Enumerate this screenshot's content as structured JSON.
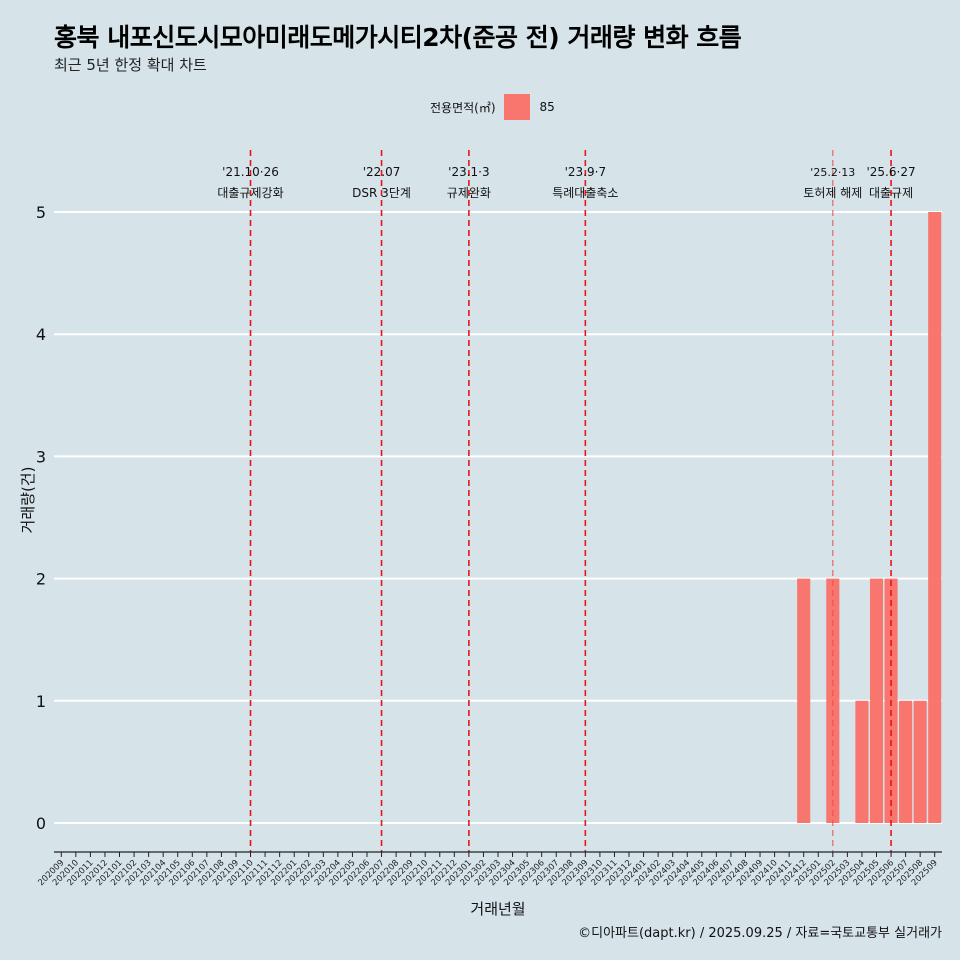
{
  "title": "홍북 내포신도시모아미래도메가시티2차(준공 전) 거래량 변화 흐름",
  "subtitle": "최근 5년 한정 확대 차트",
  "legend": {
    "title": "전용면적(㎡)",
    "item": "85"
  },
  "caption": "©디아파트(dapt.kr) / 2025.09.25 / 자료=국토교통부 실거래가",
  "chart_data": {
    "type": "bar",
    "xlabel": "거래년월",
    "ylabel": "거래량(건)",
    "ylim": [
      0,
      5
    ],
    "yticks": [
      0,
      1,
      2,
      3,
      4,
      5
    ],
    "categories": [
      "202009",
      "202010",
      "202011",
      "202012",
      "202101",
      "202102",
      "202103",
      "202104",
      "202105",
      "202106",
      "202107",
      "202108",
      "202109",
      "202110",
      "202111",
      "202112",
      "202201",
      "202202",
      "202203",
      "202204",
      "202205",
      "202206",
      "202207",
      "202208",
      "202209",
      "202210",
      "202211",
      "202212",
      "202301",
      "202302",
      "202303",
      "202304",
      "202305",
      "202306",
      "202307",
      "202308",
      "202309",
      "202310",
      "202311",
      "202312",
      "202401",
      "202402",
      "202403",
      "202404",
      "202405",
      "202406",
      "202407",
      "202408",
      "202409",
      "202410",
      "202411",
      "202412",
      "202501",
      "202502",
      "202503",
      "202504",
      "202505",
      "202506",
      "202507",
      "202508",
      "202509"
    ],
    "series": [
      {
        "name": "85",
        "color": "#f8766d",
        "values": {
          "202412": 2,
          "202502": 2,
          "202504": 1,
          "202505": 2,
          "202506": 2,
          "202507": 1,
          "202508": 1,
          "202509": 5
        }
      }
    ],
    "annotations": [
      {
        "month": "202110",
        "date": "'21.10·26",
        "label": "대출규제강화",
        "color": "#e8141b"
      },
      {
        "month": "202207",
        "date": "'22.07",
        "label": "DSR 3단계",
        "color": "#e8141b"
      },
      {
        "month": "202301",
        "date": "'23.1·3",
        "label": "규제완화",
        "color": "#e8141b"
      },
      {
        "month": "202309",
        "date": "'23.9·7",
        "label": "특례대출축소",
        "color": "#e8141b"
      },
      {
        "month": "202502",
        "date": "'25.2·13",
        "label": "토허제 해제",
        "color": "#f04a4a"
      },
      {
        "month": "202506",
        "date": "'25.6·27",
        "label": "대출규제",
        "color": "#e8141b"
      }
    ]
  }
}
